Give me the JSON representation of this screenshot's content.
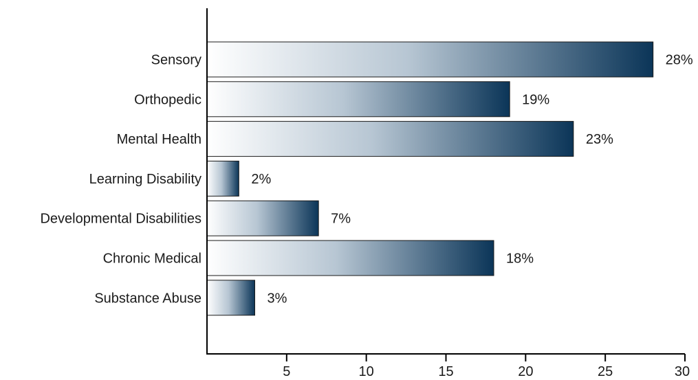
{
  "chart_data": {
    "type": "bar",
    "orientation": "horizontal",
    "categories": [
      "Sensory",
      "Orthopedic",
      "Mental Health",
      "Learning Disability",
      "Developmental Disabilities",
      "Chronic Medical",
      "Substance Abuse"
    ],
    "values": [
      28,
      19,
      23,
      2,
      7,
      18,
      3
    ],
    "value_labels": [
      "28%",
      "19%",
      "23%",
      "2%",
      "7%",
      "18%",
      "3%"
    ],
    "xlim": [
      0,
      30
    ],
    "xticks": [
      5,
      10,
      15,
      20,
      25,
      30
    ],
    "grid": false,
    "legend": "none",
    "colors": {
      "bar_start": "#ffffff",
      "bar_end": "#0b3558"
    }
  }
}
